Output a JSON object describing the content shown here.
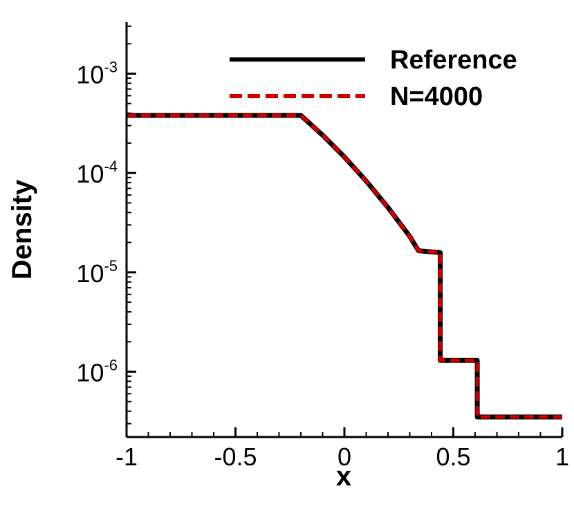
{
  "chart_data": {
    "type": "line",
    "title": "",
    "xlabel": "x",
    "ylabel": "Density",
    "yscale": "log",
    "xlim": [
      -1,
      1
    ],
    "ylim": [
      2.2e-07,
      0.0033
    ],
    "grid": false,
    "legend_position": "top-right",
    "x_ticks": [
      {
        "value": -1,
        "label": "-1"
      },
      {
        "value": -0.5,
        "label": "-0.5"
      },
      {
        "value": 0,
        "label": "0"
      },
      {
        "value": 0.5,
        "label": "0.5"
      },
      {
        "value": 1,
        "label": "1"
      }
    ],
    "y_ticks": [
      {
        "value": 0.001,
        "base": "10",
        "exp": "-3"
      },
      {
        "value": 0.0001,
        "base": "10",
        "exp": "-4"
      },
      {
        "value": 1e-05,
        "base": "10",
        "exp": "-5"
      },
      {
        "value": 1e-06,
        "base": "10",
        "exp": "-6"
      }
    ],
    "series": [
      {
        "name": "Reference",
        "color": "#000000",
        "style": "solid",
        "x": [
          -1,
          -0.2,
          -0.1,
          0,
          0.1,
          0.2,
          0.3,
          0.34,
          0.44,
          0.44,
          0.61,
          0.61,
          1
        ],
        "y": [
          0.00038,
          0.00038,
          0.00024,
          0.000145,
          8.3e-05,
          4.5e-05,
          2.3e-05,
          1.65e-05,
          1.58e-05,
          1.3e-06,
          1.3e-06,
          3.5e-07,
          3.5e-07
        ]
      },
      {
        "name": "N=4000",
        "color": "#cc0000",
        "style": "dashed",
        "x": [
          -1,
          -0.2,
          -0.1,
          0,
          0.1,
          0.2,
          0.3,
          0.34,
          0.44,
          0.44,
          0.61,
          0.61,
          1
        ],
        "y": [
          0.00038,
          0.00038,
          0.00024,
          0.000145,
          8.3e-05,
          4.5e-05,
          2.3e-05,
          1.65e-05,
          1.58e-05,
          1.3e-06,
          1.3e-06,
          3.5e-07,
          3.5e-07
        ]
      }
    ]
  }
}
